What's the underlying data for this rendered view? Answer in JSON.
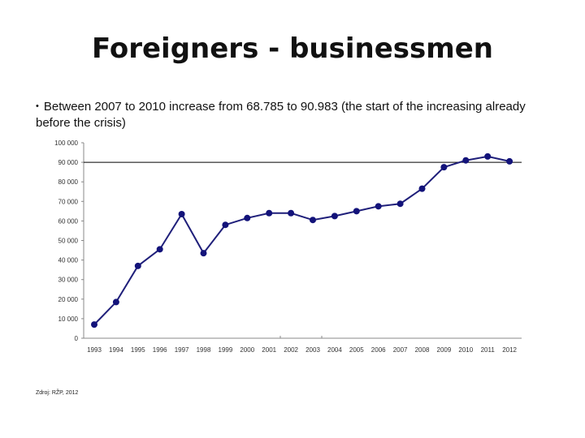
{
  "slide": {
    "title": "Foreigners - businessmen",
    "bullet": "Between 2007 to 2010 increase from 68.785 to 90.983 (the start of the increasing already before the crisis)",
    "source": "Zdroj: RŽP, 2012"
  },
  "chart_data": {
    "type": "line",
    "title": "",
    "xlabel": "",
    "ylabel": "",
    "categories": [
      "1993",
      "1994",
      "1995",
      "1996",
      "1997",
      "1998",
      "1999",
      "2000",
      "2001",
      "2002",
      "2003",
      "2004",
      "2005",
      "2006",
      "2007",
      "2008",
      "2009",
      "2010",
      "2011",
      "2012"
    ],
    "series": [
      {
        "values": [
          7000,
          18500,
          37000,
          45500,
          63500,
          43500,
          58000,
          61500,
          64000,
          64000,
          60500,
          62500,
          65000,
          67500,
          68785,
          76500,
          87500,
          90983,
          93000,
          90500
        ]
      }
    ],
    "ylim": [
      0,
      100000
    ],
    "yticks": [
      0,
      10000,
      20000,
      30000,
      40000,
      50000,
      60000,
      70000,
      80000,
      90000,
      100000
    ],
    "ytick_labels": [
      "0",
      "10 000",
      "20 000",
      "30 000",
      "40 000",
      "50 000",
      "60 000",
      "70 000",
      "80 000",
      "90 000",
      "100 000"
    ],
    "reference_line": 90000,
    "grid": false,
    "legend": "none",
    "colors": {
      "line": "#1f1f7a",
      "marker": "#13137a",
      "axis": "#888888"
    }
  }
}
